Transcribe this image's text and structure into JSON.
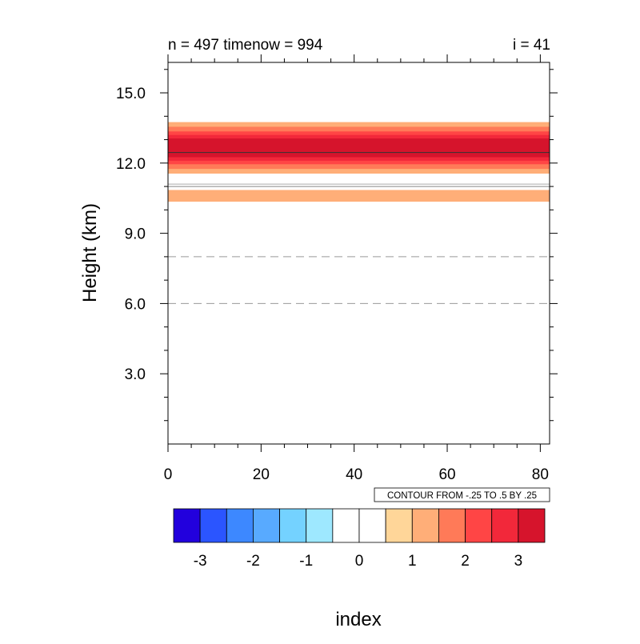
{
  "chart_data": {
    "type": "heatmap",
    "title_left": "n = 497 timenow = 994",
    "title_right": "i = 41",
    "xlabel": "index",
    "ylabel": "Height (km)",
    "xlim": [
      0,
      82
    ],
    "ylim": [
      0,
      16.3
    ],
    "x_ticks": [
      0,
      20,
      40,
      60,
      80
    ],
    "x_tick_labels": [
      "0",
      "20",
      "40",
      "60",
      "80"
    ],
    "y_ticks": [
      3,
      6,
      9,
      12,
      15
    ],
    "y_tick_labels": [
      "3.0",
      "6.0",
      "9.0",
      "12.0",
      "15.0"
    ],
    "contour_info": "CONTOUR FROM -.25 TO .5 BY .25",
    "bands": [
      {
        "y0": 10.35,
        "y1": 10.85,
        "level": 1
      },
      {
        "y0": 11.55,
        "y1": 13.75,
        "level": 1
      },
      {
        "y0": 11.75,
        "y1": 13.55,
        "level": 1.5
      },
      {
        "y0": 11.95,
        "y1": 13.35,
        "level": 2
      },
      {
        "y0": 12.1,
        "y1": 13.2,
        "level": 2.5
      },
      {
        "y0": 12.25,
        "y1": 13.05,
        "level": 3
      }
    ],
    "contour_lines": [
      {
        "y": 11.0,
        "style": "solid",
        "color": "#888888"
      },
      {
        "y": 11.1,
        "style": "solid",
        "color": "#aaaaaa"
      },
      {
        "y": 12.45,
        "style": "solid",
        "color": "#333333"
      },
      {
        "y": 8.0,
        "style": "dashed",
        "color": "#999999"
      },
      {
        "y": 6.0,
        "style": "dashed",
        "color": "#999999"
      }
    ],
    "colorbar": {
      "colors": [
        "#2200dd",
        "#2b55ff",
        "#3d88ff",
        "#58aaff",
        "#74d2ff",
        "#9ee8ff",
        "#ffffff",
        "#ffffff",
        "#ffd699",
        "#ffae78",
        "#ff7a58",
        "#ff4545",
        "#f2283a",
        "#d6142c"
      ],
      "tick_labels": [
        "-3",
        "-2",
        "-1",
        "0",
        "1",
        "2",
        "3"
      ]
    }
  }
}
